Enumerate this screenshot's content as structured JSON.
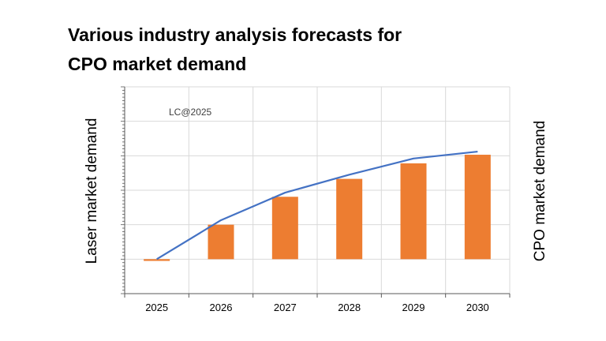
{
  "title_lines": [
    "Various industry analysis forecasts for",
    "CPO market demand"
  ],
  "chart_data": {
    "type": "bar",
    "title": "Various industry analysis forecasts for CPO market demand",
    "categories": [
      "2025",
      "2026",
      "2027",
      "2028",
      "2029",
      "2030"
    ],
    "y_left_label": "Laser market demand",
    "y_right_label": "CPO market demand",
    "annotation": "LC@2025",
    "ylim": [
      -100,
      500
    ],
    "series": [
      {
        "name": "CPO market demand",
        "type": "bar",
        "color": "#ed7d31",
        "values": [
          -5,
          100,
          181,
          233,
          278,
          303
        ]
      },
      {
        "name": "Laser market demand",
        "type": "line",
        "color": "#4472c4",
        "values": [
          0,
          113,
          193,
          245,
          292,
          312
        ]
      }
    ],
    "grid": true,
    "grid_color": "#d9d9d9",
    "axis_color": "#595959"
  }
}
